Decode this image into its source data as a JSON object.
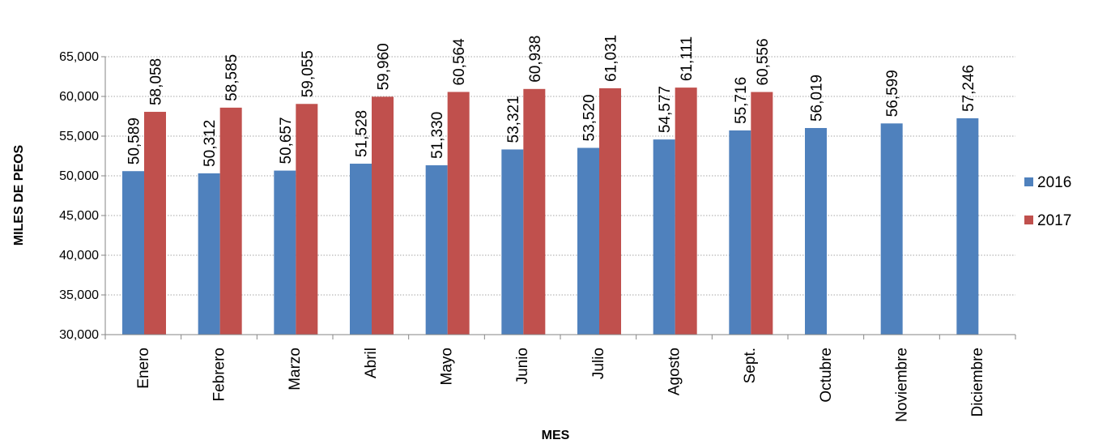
{
  "chart_data": {
    "type": "bar",
    "title": "",
    "xlabel": "MES",
    "ylabel": "MILES DE PEOS",
    "ylim": [
      30000,
      65000
    ],
    "yticks": [
      30000,
      35000,
      40000,
      45000,
      50000,
      55000,
      60000,
      65000
    ],
    "ytick_labels": [
      "30,000",
      "35,000",
      "40,000",
      "45,000",
      "50,000",
      "55,000",
      "60,000",
      "65,000"
    ],
    "grid": "horizontal dotted",
    "legend_position": "right",
    "categories": [
      "Enero",
      "Febrero",
      "Marzo",
      "Abril",
      "Mayo",
      "Junio",
      "Julio",
      "Agosto",
      "Sept.",
      "Octubre",
      "Noviembre",
      "Diciembre"
    ],
    "series": [
      {
        "name": "2016",
        "color": "#4F81BD",
        "values": [
          50589,
          50312,
          50657,
          51528,
          51330,
          53321,
          53520,
          54577,
          55716,
          56019,
          56599,
          57246
        ],
        "labels": [
          "50,589",
          "50,312",
          "50,657",
          "51,528",
          "51,330",
          "53,321",
          "53,520",
          "54,577",
          "55,716",
          "56,019",
          "56,599",
          "57,246"
        ]
      },
      {
        "name": "2017",
        "color": "#C0504D",
        "values": [
          58058,
          58585,
          59055,
          59960,
          60564,
          60938,
          61031,
          61111,
          60556,
          null,
          null,
          null
        ],
        "labels": [
          "58,058",
          "58,585",
          "59,055",
          "59,960",
          "60,564",
          "60,938",
          "61,031",
          "61,111",
          "60,556",
          null,
          null,
          null
        ]
      }
    ]
  }
}
